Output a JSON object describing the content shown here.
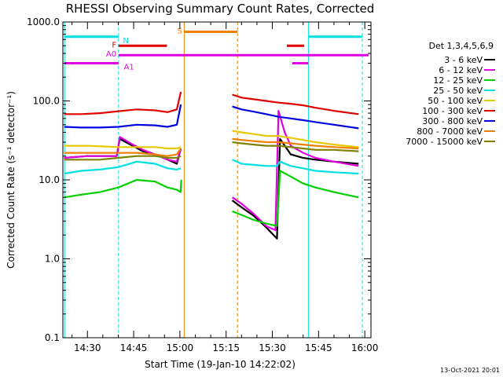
{
  "chart_data": {
    "type": "line",
    "title": "RHESSI Observing Summary Count Rates, Corrected",
    "xlabel": "Start Time (19-Jan-10 14:22:02)",
    "ylabel": "Corrected Count Rate (s⁻¹ detector⁻¹)",
    "yscale": "log",
    "ylim": [
      0.1,
      1000
    ],
    "xlim": [
      "14:22:02",
      "16:02:00"
    ],
    "x_unit": "minutes since 14:00",
    "x_ticks": [
      {
        "value": 30,
        "label": "14:30"
      },
      {
        "value": 45,
        "label": "14:45"
      },
      {
        "value": 60,
        "label": "15:00"
      },
      {
        "value": 75,
        "label": "15:15"
      },
      {
        "value": 90,
        "label": "15:30"
      },
      {
        "value": 105,
        "label": "15:45"
      },
      {
        "value": 120,
        "label": "16:00"
      }
    ],
    "y_ticks": [
      {
        "value": 0.1,
        "label": "0.1"
      },
      {
        "value": 1,
        "label": "1.0"
      },
      {
        "value": 10,
        "label": "10.0"
      },
      {
        "value": 100,
        "label": "100.0"
      },
      {
        "value": 1000,
        "label": "1000.0"
      }
    ],
    "legend_title": "Det 1,3,4,5,6,9",
    "legend_position": "right",
    "gap": [
      60.5,
      77
    ],
    "series": [
      {
        "name": "3 - 6 keV",
        "color": "#000000",
        "points": [
          [
            22.5,
            19
          ],
          [
            30,
            20
          ],
          [
            39.5,
            20
          ],
          [
            40.5,
            33
          ],
          [
            44,
            28
          ],
          [
            48,
            23
          ],
          [
            52,
            21
          ],
          [
            56,
            18
          ],
          [
            59,
            16
          ],
          [
            60.3,
            25
          ],
          [
            77,
            5.5
          ],
          [
            80,
            4.5
          ],
          [
            84,
            3.5
          ],
          [
            88,
            2.5
          ],
          [
            91.5,
            1.8
          ],
          [
            92.5,
            33
          ],
          [
            96,
            21
          ],
          [
            100,
            19
          ],
          [
            104,
            18
          ],
          [
            110,
            17
          ],
          [
            118,
            16
          ]
        ]
      },
      {
        "name": "6 - 12 keV",
        "color": "#e000e0",
        "points": [
          [
            22.5,
            19
          ],
          [
            30,
            20
          ],
          [
            39.5,
            20
          ],
          [
            40.5,
            35
          ],
          [
            44,
            29
          ],
          [
            48,
            24
          ],
          [
            52,
            21
          ],
          [
            56,
            18
          ],
          [
            59,
            17
          ],
          [
            60.3,
            25
          ],
          [
            77,
            6
          ],
          [
            80,
            5
          ],
          [
            84,
            3.7
          ],
          [
            88,
            2.6
          ],
          [
            91,
            2.3
          ],
          [
            92,
            75
          ],
          [
            94,
            40
          ],
          [
            96,
            27
          ],
          [
            100,
            22
          ],
          [
            104,
            19
          ],
          [
            110,
            17
          ],
          [
            118,
            15
          ]
        ]
      },
      {
        "name": "12 - 25 keV",
        "color": "#00d000",
        "points": [
          [
            22.5,
            6
          ],
          [
            28,
            6.5
          ],
          [
            34,
            7
          ],
          [
            40,
            8
          ],
          [
            46,
            10
          ],
          [
            52,
            9.5
          ],
          [
            56,
            8
          ],
          [
            59,
            7.5
          ],
          [
            60.2,
            7
          ],
          [
            60.5,
            10
          ],
          [
            77,
            4
          ],
          [
            80,
            3.6
          ],
          [
            84,
            3.1
          ],
          [
            88,
            2.8
          ],
          [
            91.5,
            2.6
          ],
          [
            92.5,
            13
          ],
          [
            96,
            11
          ],
          [
            100,
            9
          ],
          [
            104,
            8
          ],
          [
            110,
            7
          ],
          [
            118,
            6
          ]
        ]
      },
      {
        "name": "25 - 50 keV",
        "color": "#00e0e0",
        "points": [
          [
            22.5,
            12
          ],
          [
            28,
            13
          ],
          [
            34,
            13.5
          ],
          [
            40,
            14.5
          ],
          [
            46,
            17
          ],
          [
            52,
            16
          ],
          [
            56,
            14
          ],
          [
            59,
            13.5
          ],
          [
            60.3,
            14
          ],
          [
            77,
            18
          ],
          [
            80,
            16
          ],
          [
            84,
            15.5
          ],
          [
            88,
            15
          ],
          [
            91.5,
            15
          ],
          [
            92.5,
            17
          ],
          [
            96,
            15
          ],
          [
            100,
            14
          ],
          [
            104,
            13
          ],
          [
            110,
            12.5
          ],
          [
            118,
            12
          ]
        ]
      },
      {
        "name": "50 - 100 keV",
        "color": "#e8c800",
        "points": [
          [
            22.5,
            27
          ],
          [
            30,
            27
          ],
          [
            40,
            26
          ],
          [
            46,
            26
          ],
          [
            52,
            26
          ],
          [
            56,
            25
          ],
          [
            59,
            25
          ],
          [
            60.3,
            26
          ],
          [
            77,
            42
          ],
          [
            80,
            40
          ],
          [
            84,
            38
          ],
          [
            88,
            36
          ],
          [
            92,
            36
          ],
          [
            96,
            34
          ],
          [
            100,
            32
          ],
          [
            104,
            30
          ],
          [
            110,
            28
          ],
          [
            118,
            26
          ]
        ]
      },
      {
        "name": "100 - 300 keV",
        "color": "#e00000",
        "points": [
          [
            22.5,
            68
          ],
          [
            28,
            68
          ],
          [
            34,
            70
          ],
          [
            40,
            74
          ],
          [
            46,
            78
          ],
          [
            52,
            76
          ],
          [
            56,
            72
          ],
          [
            59,
            78
          ],
          [
            60.3,
            130
          ],
          [
            77,
            120
          ],
          [
            80,
            110
          ],
          [
            84,
            105
          ],
          [
            88,
            100
          ],
          [
            92,
            95
          ],
          [
            96,
            92
          ],
          [
            100,
            88
          ],
          [
            104,
            82
          ],
          [
            110,
            75
          ],
          [
            118,
            68
          ]
        ]
      },
      {
        "name": "300 - 800 keV",
        "color": "#0000e0",
        "points": [
          [
            22.5,
            47
          ],
          [
            28,
            46
          ],
          [
            34,
            46
          ],
          [
            40,
            47
          ],
          [
            46,
            50
          ],
          [
            52,
            49
          ],
          [
            56,
            47
          ],
          [
            59,
            50
          ],
          [
            60.3,
            90
          ],
          [
            77,
            85
          ],
          [
            80,
            78
          ],
          [
            84,
            73
          ],
          [
            88,
            68
          ],
          [
            92,
            63
          ],
          [
            96,
            60
          ],
          [
            100,
            57
          ],
          [
            104,
            54
          ],
          [
            110,
            50
          ],
          [
            118,
            45
          ]
        ]
      },
      {
        "name": "800 - 7000 keV",
        "color": "#f08000",
        "points": [
          [
            22.5,
            22
          ],
          [
            28,
            22
          ],
          [
            34,
            22
          ],
          [
            40,
            22
          ],
          [
            46,
            22
          ],
          [
            52,
            21
          ],
          [
            56,
            20
          ],
          [
            59,
            21
          ],
          [
            60.3,
            25
          ],
          [
            77,
            33
          ],
          [
            80,
            32
          ],
          [
            84,
            31
          ],
          [
            88,
            30
          ],
          [
            92,
            30
          ],
          [
            96,
            29
          ],
          [
            100,
            28
          ],
          [
            104,
            27
          ],
          [
            110,
            26
          ],
          [
            118,
            25
          ]
        ]
      },
      {
        "name": "7000 - 15000 keV",
        "color": "#808000",
        "points": [
          [
            22.5,
            18
          ],
          [
            28,
            18
          ],
          [
            34,
            18
          ],
          [
            40,
            19
          ],
          [
            46,
            20
          ],
          [
            52,
            20
          ],
          [
            56,
            19
          ],
          [
            59,
            19
          ],
          [
            60.3,
            20
          ],
          [
            77,
            30
          ],
          [
            80,
            29
          ],
          [
            84,
            28
          ],
          [
            88,
            27
          ],
          [
            92,
            27
          ],
          [
            96,
            26
          ],
          [
            100,
            25
          ],
          [
            104,
            24
          ],
          [
            110,
            24
          ],
          [
            118,
            23
          ]
        ]
      }
    ],
    "vertical_markers": [
      {
        "x": 22.6,
        "color": "#00e0e0",
        "style": "solid"
      },
      {
        "x": 40.1,
        "color": "#00e0e0",
        "style": "dashed"
      },
      {
        "x": 101.7,
        "color": "#00e0e0",
        "style": "solid"
      },
      {
        "x": 119.2,
        "color": "#00e0e0",
        "style": "dashed"
      },
      {
        "x": 61.4,
        "color": "#f08000",
        "style": "solid"
      },
      {
        "x": 78.7,
        "color": "#f08000",
        "style": "dashed"
      }
    ],
    "flag_bars": [
      {
        "label": "N",
        "color": "#00e0e0",
        "y": 650,
        "segments": [
          [
            22.6,
            40.1
          ],
          [
            101.7,
            119.2
          ]
        ],
        "label_x": 41.5,
        "label_pos": "right"
      },
      {
        "label": "S",
        "color": "#f08000",
        "y": 750,
        "segments": [
          [
            61.4,
            78.7
          ]
        ],
        "label_x": 60.8,
        "label_pos": "left"
      },
      {
        "label": "F",
        "color": "#e00000",
        "y": 500,
        "segments": [
          [
            40.1,
            55.8
          ],
          [
            94.7,
            100.3
          ]
        ],
        "label_x": 39.4,
        "label_pos": "left"
      },
      {
        "label": "A0",
        "color": "#e000e0",
        "y": 380,
        "segments": [
          [
            40.1,
            121.2
          ]
        ],
        "label_x": 39.4,
        "label_pos": "left"
      },
      {
        "label": "A1",
        "color": "#e000e0",
        "y": 300,
        "segments": [
          [
            22.6,
            40.1
          ],
          [
            96.5,
            101.7
          ]
        ],
        "label_x": 41.8,
        "label_pos": "right"
      }
    ],
    "footer_date": "13-Oct-2021 20:01"
  }
}
